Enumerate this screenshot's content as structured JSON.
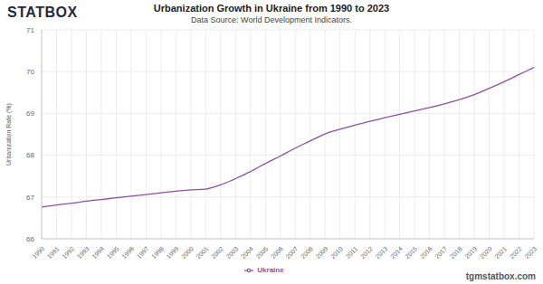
{
  "chart_data": {
    "type": "line",
    "logo": "STATBOX",
    "title": "Urbanization Growth in Ukraine from 1990 to 2023",
    "subtitle": "Data Source: World Development Indicators.",
    "y_label": "Urbanization Rate (%)",
    "watermark": "tgmstatbox.com",
    "categories": [
      "1990",
      "1991",
      "1992",
      "1993",
      "1994",
      "1995",
      "1996",
      "1997",
      "1998",
      "1999",
      "2000",
      "2001",
      "2002",
      "2003",
      "2004",
      "2005",
      "2006",
      "2007",
      "2008",
      "2009",
      "2010",
      "2011",
      "2012",
      "2013",
      "2014",
      "2015",
      "2016",
      "2017",
      "2018",
      "2019",
      "2020",
      "2021",
      "2022",
      "2023"
    ],
    "series": [
      {
        "name": "Ukraine",
        "color": "#8b4fa8",
        "values": [
          66.76,
          66.81,
          66.85,
          66.9,
          66.94,
          66.98,
          67.02,
          67.06,
          67.1,
          67.14,
          67.17,
          67.19,
          67.29,
          67.44,
          67.61,
          67.8,
          67.98,
          68.17,
          68.34,
          68.51,
          68.62,
          68.72,
          68.81,
          68.9,
          68.98,
          69.06,
          69.14,
          69.23,
          69.33,
          69.45,
          69.6,
          69.76,
          69.93,
          70.1
        ]
      }
    ],
    "ylim": [
      66,
      71
    ],
    "yticks": [
      66,
      67,
      68,
      69,
      70,
      71
    ],
    "grid": true,
    "legend": "bottom"
  }
}
